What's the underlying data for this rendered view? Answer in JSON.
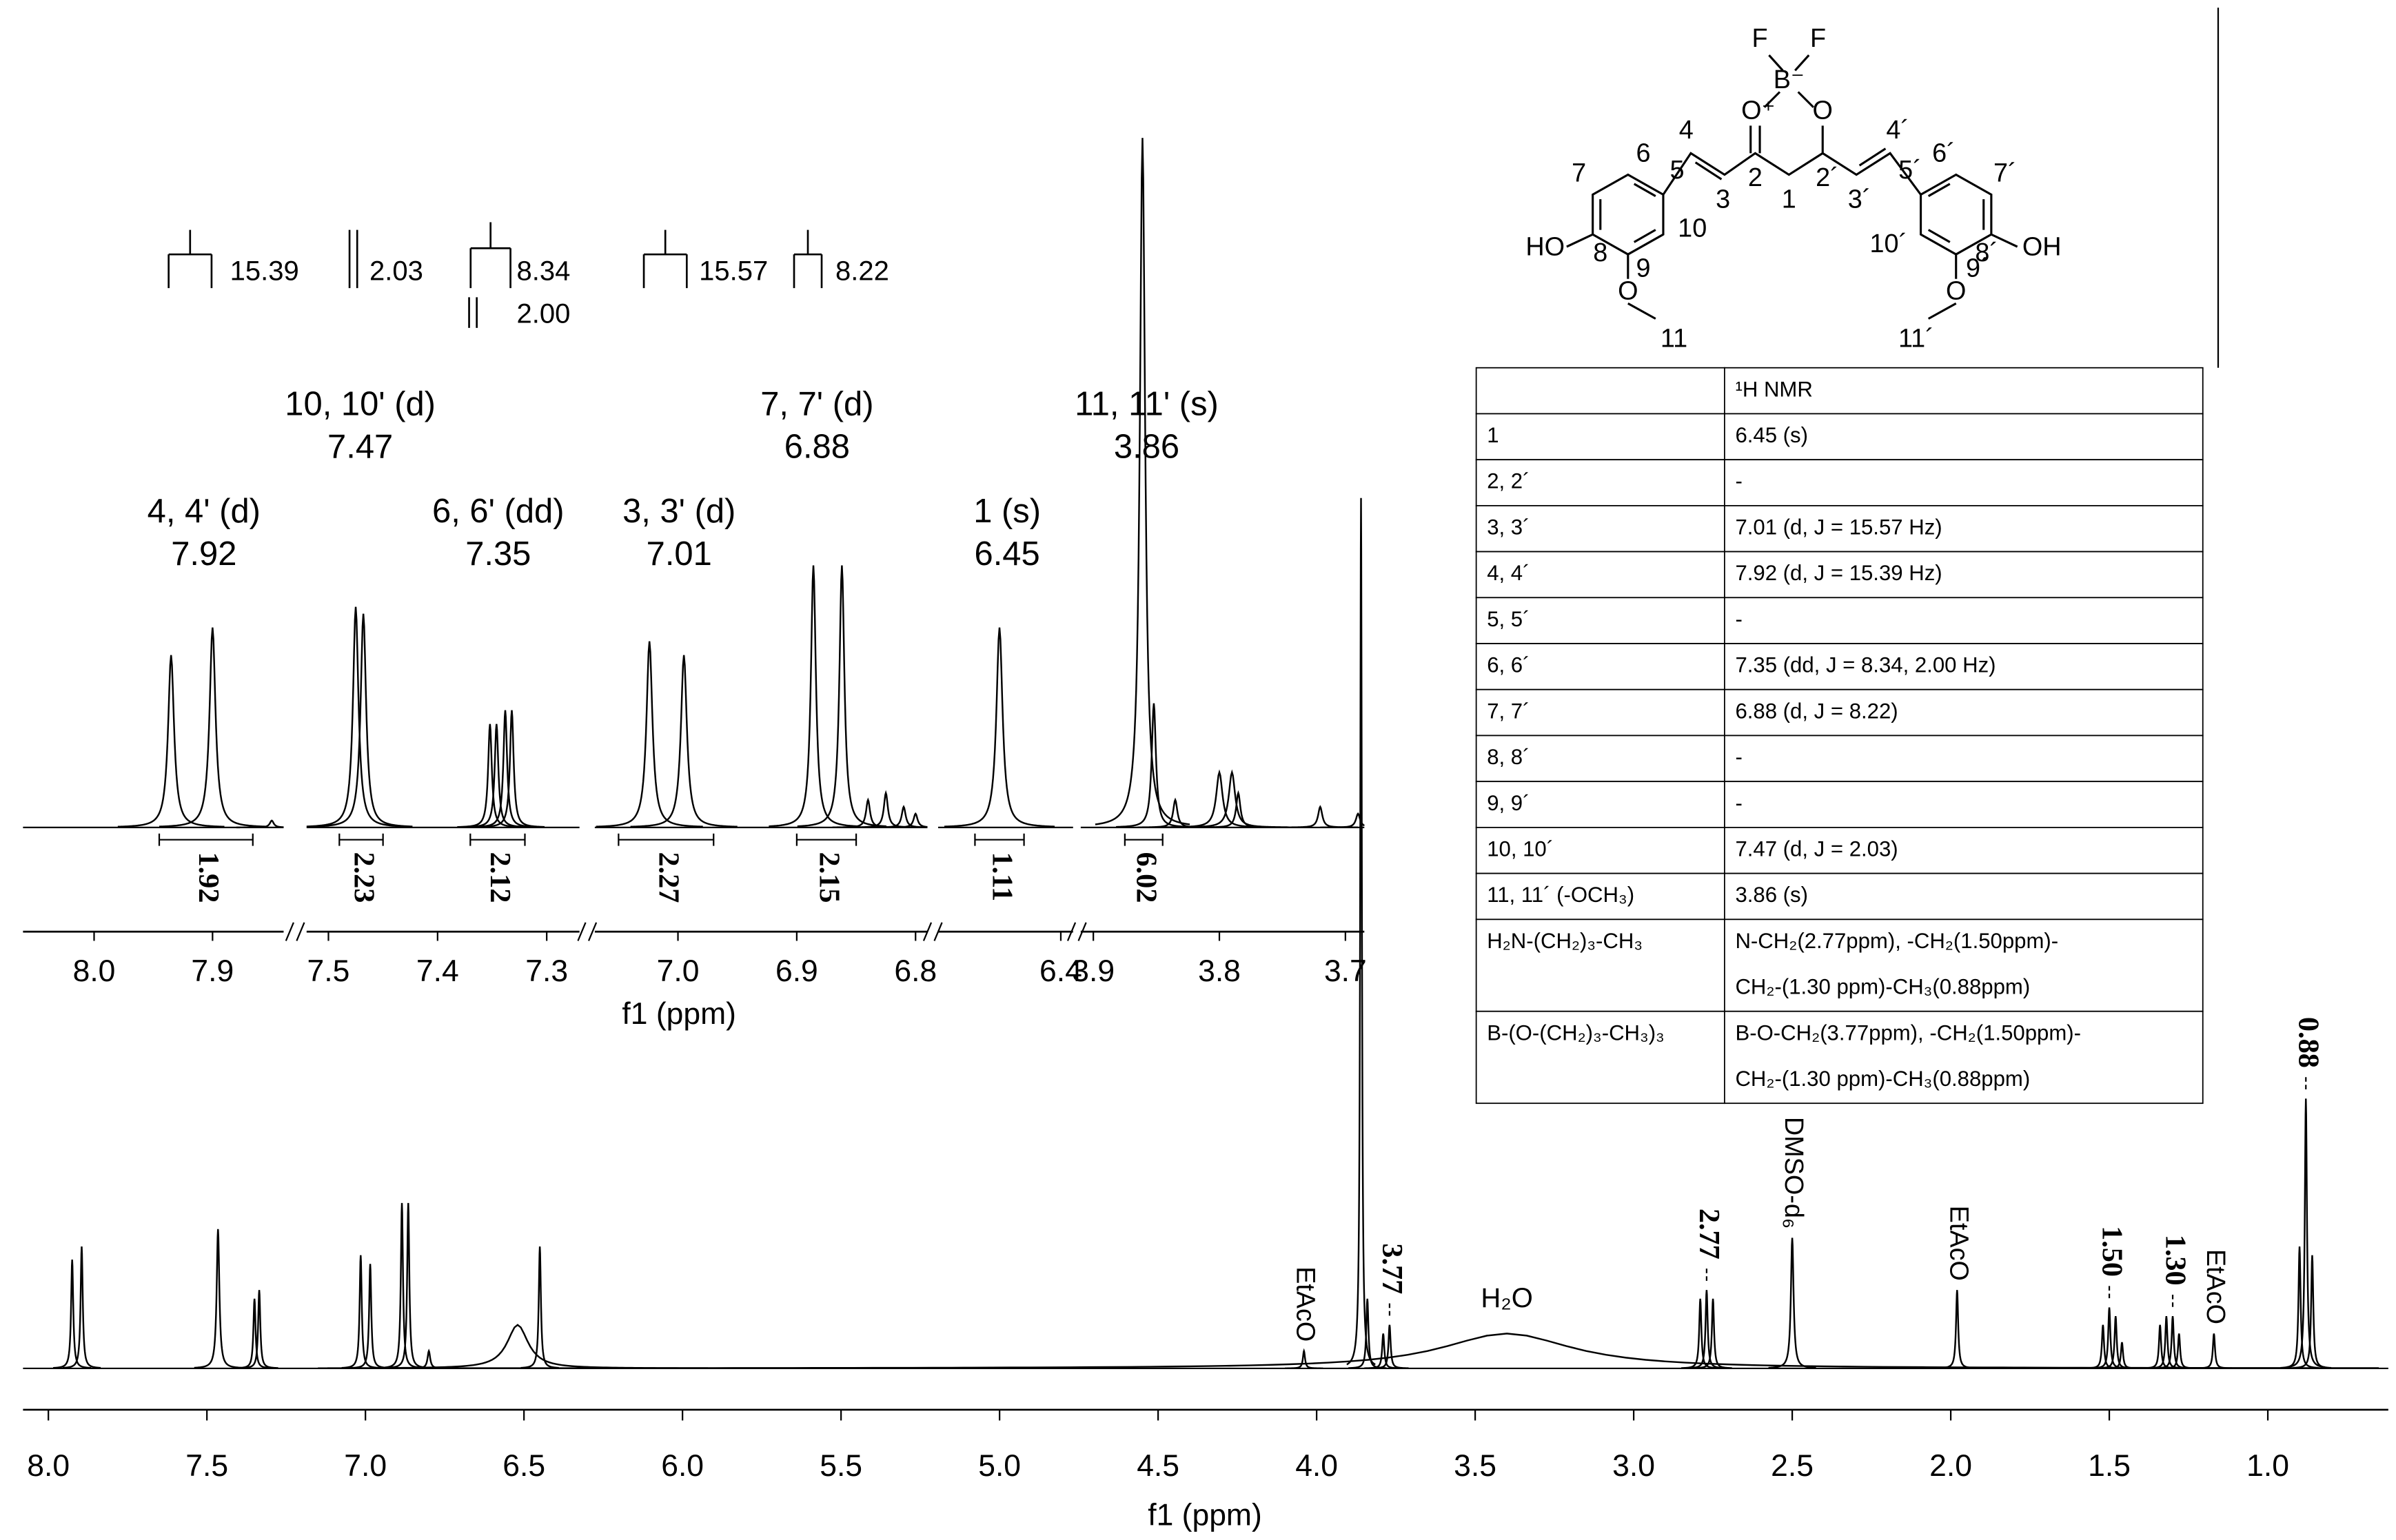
{
  "chart_data": [
    {
      "type": "nmr",
      "x_label": "f1 (ppm)",
      "xlim": [
        8.08,
        0.62
      ],
      "xticks": [
        {
          "value": 8,
          "label": "8.0"
        },
        7.5,
        {
          "value": 7,
          "label": "7.0"
        },
        6.5,
        {
          "value": 6,
          "label": "6.0"
        },
        5.5,
        {
          "value": 5,
          "label": "5.0"
        },
        4.5,
        {
          "value": 4,
          "label": "4.0"
        },
        3.5,
        {
          "value": 3,
          "label": "3.0"
        },
        2.5,
        {
          "value": 2,
          "label": "2.0"
        },
        1.5,
        {
          "value": 1,
          "label": "1.0"
        }
      ],
      "color": "#000000",
      "peaks": {
        "x": [
          7.925,
          7.895,
          7.465,
          7.35,
          7.335,
          7.015,
          6.985,
          6.885,
          6.865,
          6.8,
          6.52,
          6.45,
          4.04,
          3.86,
          3.84,
          3.79,
          3.77,
          3.4,
          2.79,
          2.77,
          2.75,
          2.5,
          1.98,
          1.52,
          1.5,
          1.48,
          1.46,
          1.34,
          1.32,
          1.3,
          1.28,
          1.17,
          0.9,
          0.88,
          0.86
        ],
        "values": [
          12.5,
          14,
          16,
          8,
          9,
          13,
          12,
          19,
          19,
          2,
          5,
          14,
          2,
          100,
          8,
          4,
          5,
          4,
          8,
          9,
          8,
          15,
          9,
          5,
          7,
          6,
          3,
          5,
          6,
          6,
          4,
          4,
          14,
          31,
          13
        ],
        "widths": [
          0.004,
          0.004,
          0.005,
          0.004,
          0.004,
          0.004,
          0.004,
          0.004,
          0.004,
          0.005,
          0.04,
          0.004,
          0.004,
          0.003,
          0.004,
          0.004,
          0.004,
          0.25,
          0.004,
          0.004,
          0.004,
          0.005,
          0.004,
          0.004,
          0.004,
          0.004,
          0.004,
          0.004,
          0.004,
          0.004,
          0.004,
          0.004,
          0.004,
          0.004,
          0.004
        ]
      },
      "peak_labels": [
        3.77,
        2.77,
        {
          "value": 1.5,
          "label": "1.50"
        },
        {
          "value": 1.3,
          "label": "1.30"
        },
        0.88
      ],
      "annotations": [
        {
          "text": "EtAcO",
          "x": 4.04,
          "orientation": "vertical"
        },
        {
          "text": "H₂O",
          "x": 3.4,
          "orientation": "horizontal"
        },
        {
          "text": "DMSO-d₆",
          "x": 2.5,
          "orientation": "vertical"
        },
        {
          "text": "EtAcO",
          "x": 1.98,
          "orientation": "vertical"
        },
        {
          "text": "EtAcO",
          "x": 1.17,
          "orientation": "vertical"
        }
      ]
    },
    {
      "type": "nmr-inset",
      "x_label": "f1 (ppm)",
      "color": "#000000",
      "segments": [
        {
          "xlim": [
            8.06,
            7.84
          ],
          "xticks": [
            {
              "value": 8,
              "label": "8.0"
            },
            7.9
          ]
        },
        {
          "xlim": [
            7.52,
            7.27
          ],
          "xticks": [
            7.5,
            7.4,
            7.3
          ]
        },
        {
          "xlim": [
            7.07,
            6.79
          ],
          "xticks": [
            {
              "value": 7,
              "label": "7.0"
            },
            6.9,
            6.8
          ]
        },
        {
          "xlim": [
            6.5,
            6.39
          ],
          "xticks": [
            6.4
          ]
        },
        {
          "xlim": [
            3.91,
            3.685
          ],
          "xticks": [
            3.9,
            3.8,
            3.7
          ]
        }
      ],
      "peaks": {
        "x": [
          7.935,
          7.9,
          7.85,
          7.475,
          7.468,
          7.352,
          7.346,
          7.338,
          7.332,
          7.024,
          6.995,
          6.886,
          6.862,
          6.84,
          6.825,
          6.81,
          6.8,
          6.45,
          3.861,
          3.852,
          3.835,
          3.8,
          3.79,
          3.785,
          3.72,
          3.69
        ],
        "values": [
          25,
          29,
          1,
          32,
          31,
          15,
          15,
          17,
          17,
          27,
          25,
          38,
          38,
          4,
          5,
          3,
          2,
          29,
          100,
          18,
          4,
          8,
          8,
          5,
          3,
          2
        ],
        "widths": [
          0.003,
          0.003,
          0.002,
          0.003,
          0.003,
          0.002,
          0.002,
          0.002,
          0.002,
          0.003,
          0.003,
          0.0025,
          0.0025,
          0.002,
          0.002,
          0.002,
          0.002,
          0.003,
          0.0025,
          0.002,
          0.002,
          0.003,
          0.003,
          0.002,
          0.002,
          0.002
        ]
      },
      "integrals": [
        {
          "range": [
            7.945,
            7.866
          ],
          "value": 1.92
        },
        {
          "range": [
            7.49,
            7.45
          ],
          "value": 2.23
        },
        {
          "range": [
            7.37,
            7.32
          ],
          "value": 2.12
        },
        {
          "range": [
            7.05,
            6.97
          ],
          "value": 2.27
        },
        {
          "range": [
            6.9,
            6.85
          ],
          "value": 2.15
        },
        {
          "range": [
            6.47,
            6.43
          ],
          "value": 1.11
        },
        {
          "range": [
            3.875,
            3.845
          ],
          "value": 6.02
        }
      ],
      "assignments": [
        {
          "label": "4, 4' (d)",
          "shift": 7.92
        },
        {
          "label": "10, 10' (d)",
          "shift": 7.47
        },
        {
          "label": "6, 6' (dd)",
          "shift": 7.35
        },
        {
          "label": "3, 3' (d)",
          "shift": 7.01
        },
        {
          "label": "7, 7' (d)",
          "shift": 6.88
        },
        {
          "label": "1 (s)",
          "shift": 6.45
        },
        {
          "label": "11, 11' (s)",
          "shift": 3.86
        }
      ],
      "couplings": [
        15.39,
        2.03,
        8.34,
        {
          "value": 2,
          "label": "2.00"
        },
        15.57,
        8.22
      ]
    }
  ],
  "structure": {
    "labels": [
      "F",
      "F",
      "B⁻",
      "O⁺",
      "O",
      "4",
      "3",
      "2",
      "1",
      "2´",
      "3´",
      "4´",
      "5",
      "6",
      "7",
      "8",
      "HO",
      "9",
      "O",
      "11",
      "10",
      "5´",
      "6´",
      "7´",
      "8´",
      "OH",
      "9´",
      "O",
      "11´",
      "10´"
    ]
  },
  "table": {
    "header": "¹H NMR",
    "rows": [
      [
        "1",
        "6.45 (s)"
      ],
      [
        "2, 2´",
        "-"
      ],
      [
        "3, 3´",
        "7.01 (d, J = 15.57 Hz)"
      ],
      [
        "4, 4´",
        "7.92 (d, J = 15.39 Hz)"
      ],
      [
        "5, 5´",
        "-"
      ],
      [
        "6, 6´",
        "7.35 (dd, J = 8.34, 2.00 Hz)"
      ],
      [
        "7, 7´",
        "6.88 (d,  J = 8.22)"
      ],
      [
        "8, 8´",
        "-"
      ],
      [
        "9, 9´",
        "-"
      ],
      [
        "10, 10´",
        "7.47 (d, J = 2.03)"
      ],
      [
        "11, 11´ (-OCH₃)",
        "3.86 (s)"
      ],
      [
        "H₂N-(CH₂)₃-CH₃",
        [
          "N-CH₂(2.77ppm), -CH₂(1.50ppm)-",
          "CH₂-(1.30 ppm)-CH₃(0.88ppm)"
        ]
      ],
      [
        "B-(O-(CH₂)₃-CH₃)₃",
        [
          "B-O-CH₂(3.77ppm), -CH₂(1.50ppm)-",
          "CH₂-(1.30 ppm)-CH₃(0.88ppm)"
        ]
      ]
    ]
  }
}
